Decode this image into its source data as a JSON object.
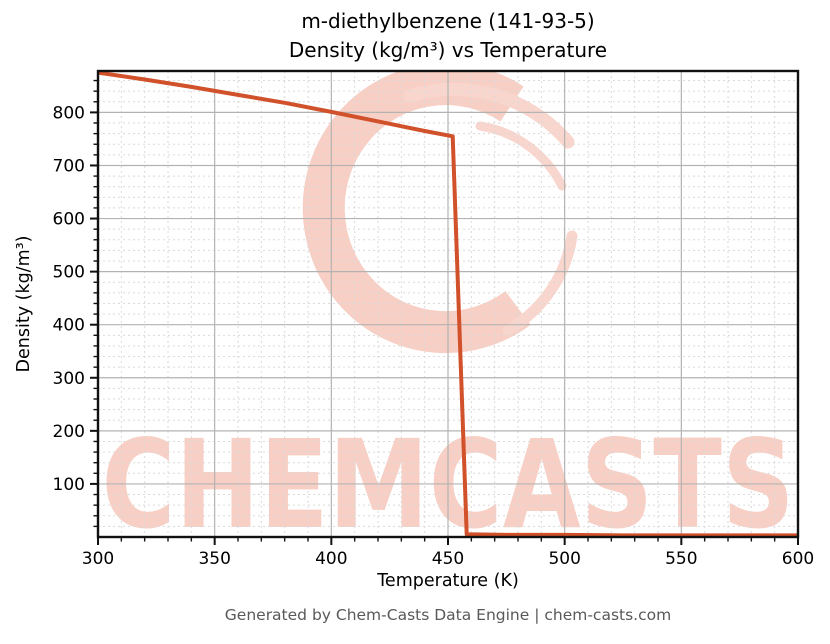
{
  "title": {
    "line1": "m-diethylbenzene (141-93-5)",
    "line2": "Density (kg/m³) vs Temperature"
  },
  "footer": {
    "text": "Generated by Chem-Casts Data Engine | chem-casts.com"
  },
  "watermark": {
    "text": "CHEMCASTS",
    "logo": "chemcasts-c-swirl-logo",
    "color": "#f8cfc5"
  },
  "colors": {
    "series_line": "#d1512b",
    "grid_major": "#b3b3b3",
    "grid_minor": "#dadada",
    "spine": "#111111",
    "tick": "#111111",
    "footer_text": "#595959"
  },
  "chart_data": {
    "type": "line",
    "title": "m-diethylbenzene (141-93-5) — Density (kg/m³) vs Temperature",
    "xlabel": "Temperature (K)",
    "ylabel": "Density (kg/m³)",
    "xlim": [
      300,
      600
    ],
    "ylim": [
      0,
      878
    ],
    "x_major_ticks": [
      300,
      350,
      400,
      450,
      500,
      550,
      600
    ],
    "y_major_ticks": [
      100,
      200,
      300,
      400,
      500,
      600,
      700,
      800
    ],
    "x_minor_step": 10,
    "y_minor_step": 20,
    "grid": true,
    "legend": "none",
    "series": [
      {
        "name": "density",
        "color": "#d1512b",
        "points": [
          [
            300,
            875
          ],
          [
            320,
            862
          ],
          [
            340,
            848
          ],
          [
            360,
            833
          ],
          [
            380,
            818
          ],
          [
            400,
            801
          ],
          [
            420,
            783
          ],
          [
            440,
            765
          ],
          [
            452,
            755
          ],
          [
            458,
            5
          ],
          [
            475,
            4
          ],
          [
            500,
            4
          ],
          [
            525,
            3
          ],
          [
            550,
            3
          ],
          [
            575,
            3
          ],
          [
            600,
            3
          ]
        ]
      }
    ]
  }
}
